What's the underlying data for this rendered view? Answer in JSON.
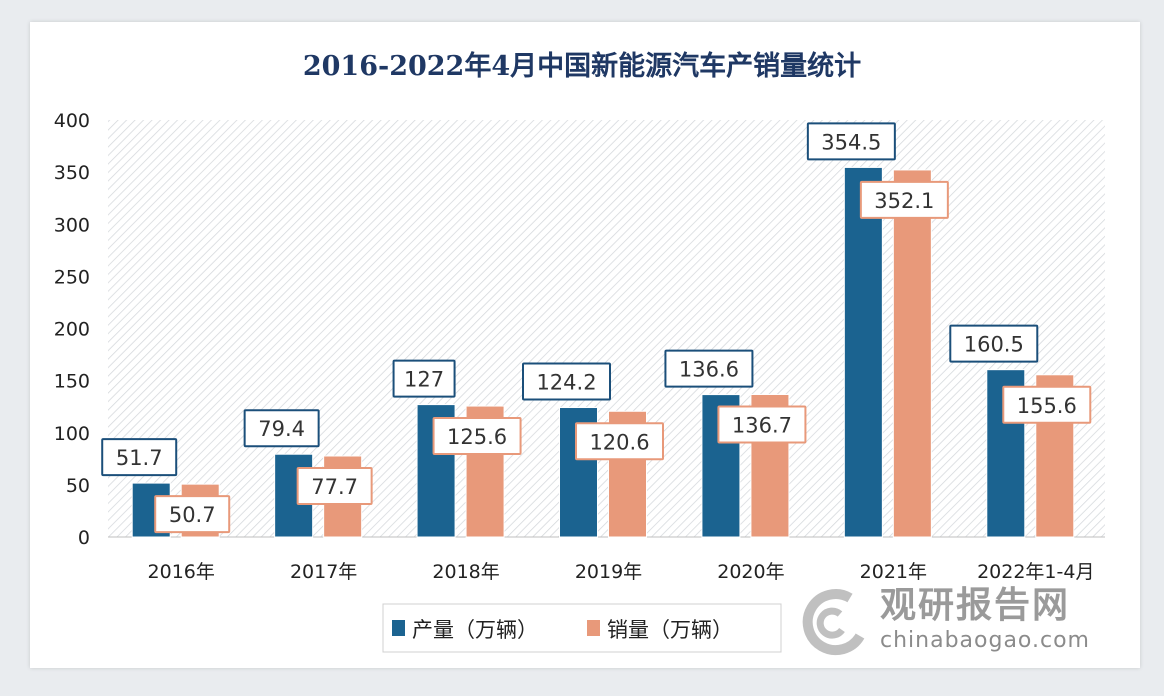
{
  "chart_data": {
    "type": "bar",
    "title": "2016-2022年4月中国新能源汽车产销量统计",
    "categories": [
      "2016年",
      "2017年",
      "2018年",
      "2019年",
      "2020年",
      "2021年",
      "2022年1-4月"
    ],
    "series": [
      {
        "name": "产量（万辆）",
        "color": "#1b6390",
        "values": [
          51.7,
          79.4,
          127,
          124.2,
          136.6,
          354.5,
          160.5
        ]
      },
      {
        "name": "销量（万辆）",
        "color": "#e8997a",
        "values": [
          50.7,
          77.7,
          125.6,
          120.6,
          136.7,
          352.1,
          155.6
        ]
      }
    ],
    "ylim": [
      0,
      400
    ],
    "yticks": [
      0,
      50,
      100,
      150,
      200,
      250,
      300,
      350,
      400
    ],
    "grid": false,
    "legend": "bottom",
    "data_labels": true
  },
  "watermark": {
    "cn": "观研报告网",
    "en": "chinabaogao.com"
  }
}
